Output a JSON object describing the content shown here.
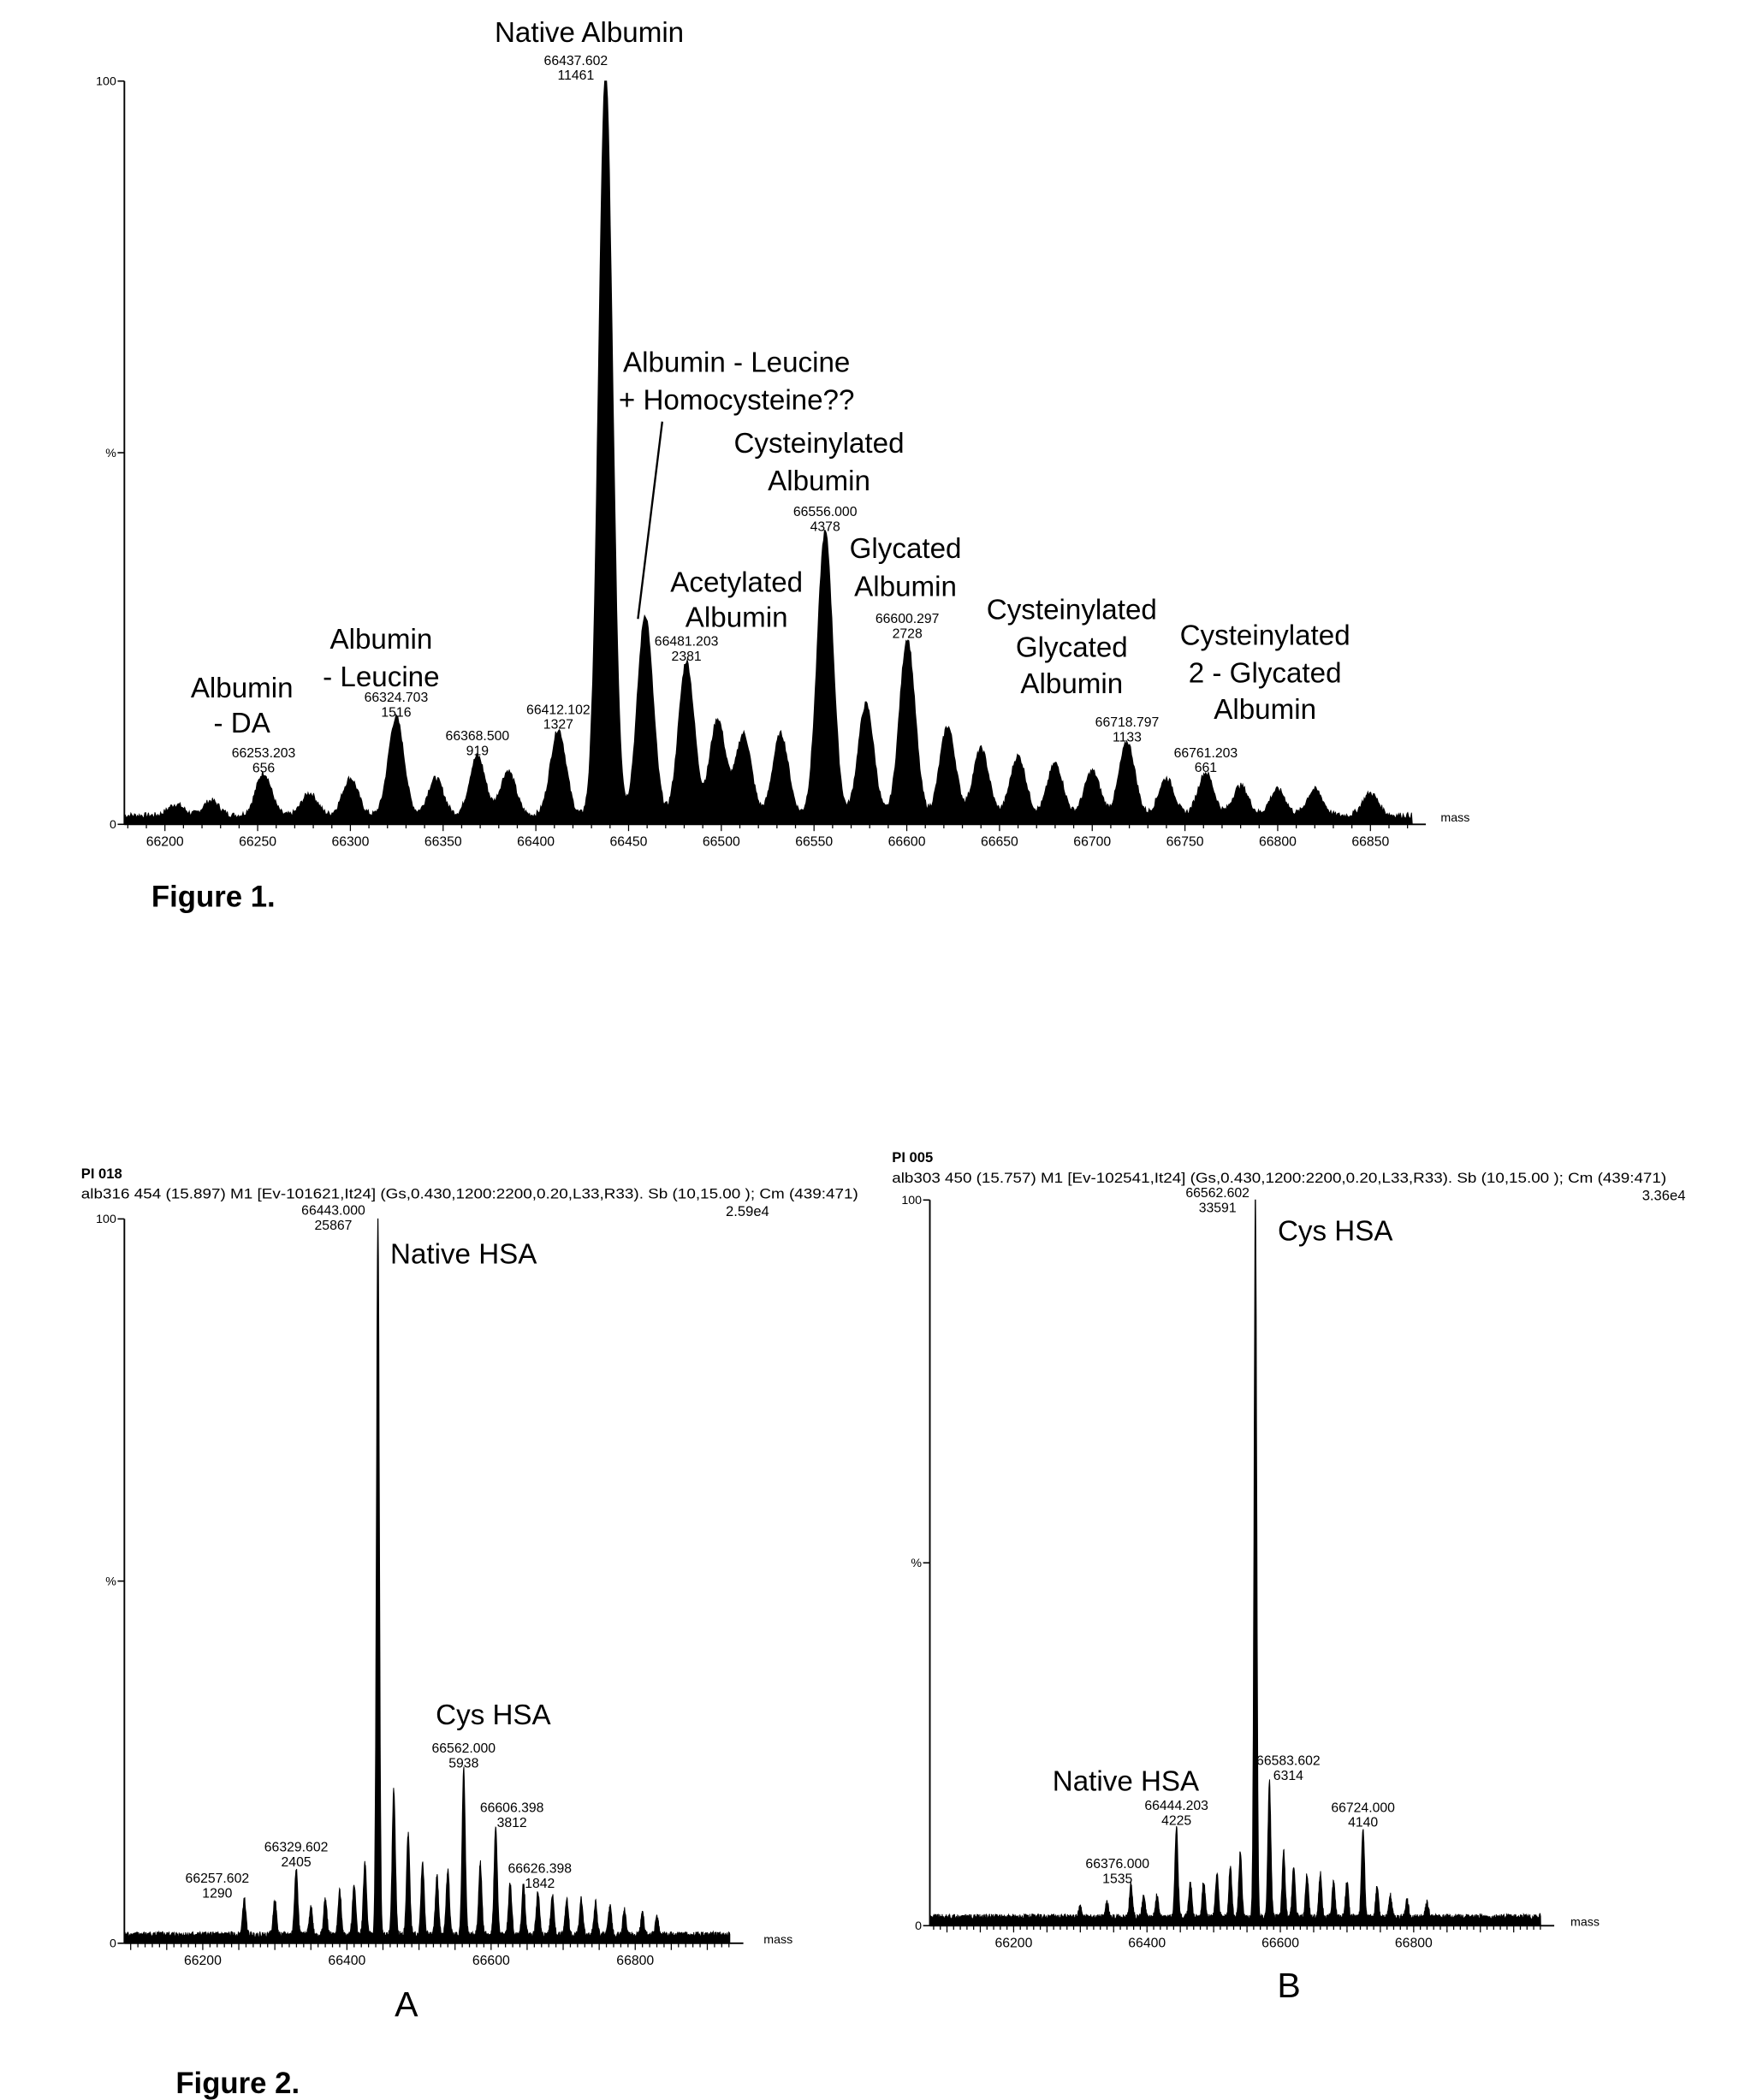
{
  "figure1_caption": "Figure 1.",
  "figure2_caption": "Figure 2.",
  "chart_data": [
    {
      "id": "fig1",
      "type": "area",
      "title": "",
      "xlabel": "mass",
      "ylabel": "%",
      "xlim": [
        66180,
        66875
      ],
      "ylim": [
        0,
        100
      ],
      "y_ticks": [
        "100",
        "%",
        "0"
      ],
      "x_ticks": [
        "66200",
        "66250",
        "66300",
        "66350",
        "66400",
        "66450",
        "66500",
        "66550",
        "66600",
        "66650",
        "66700",
        "66750",
        "66800",
        "66850"
      ],
      "max_intensity": 11461,
      "labeled_peaks": [
        {
          "mass": "66253.203",
          "intensity": "656"
        },
        {
          "mass": "66324.703",
          "intensity": "1516"
        },
        {
          "mass": "66368.500",
          "intensity": "919"
        },
        {
          "mass": "66412.102",
          "intensity": "1327"
        },
        {
          "mass": "66437.602",
          "intensity": "11461"
        },
        {
          "mass": "66481.203",
          "intensity": "2381"
        },
        {
          "mass": "66556.000",
          "intensity": "4378"
        },
        {
          "mass": "66600.297",
          "intensity": "2728"
        },
        {
          "mass": "66718.797",
          "intensity": "1133"
        },
        {
          "mass": "66761.203",
          "intensity": "661"
        }
      ],
      "minor_peaks_pct": [
        [
          66206,
          1.5
        ],
        [
          66225,
          2
        ],
        [
          66278,
          3
        ],
        [
          66300,
          5
        ],
        [
          66346,
          5
        ],
        [
          66385,
          6
        ],
        [
          66459,
          27
        ],
        [
          66498,
          13
        ],
        [
          66512,
          11
        ],
        [
          66532,
          11
        ],
        [
          66578,
          15
        ],
        [
          66622,
          12
        ],
        [
          66640,
          9
        ],
        [
          66660,
          8
        ],
        [
          66680,
          7
        ],
        [
          66700,
          6
        ],
        [
          66740,
          5
        ],
        [
          66780,
          4
        ],
        [
          66800,
          3.5
        ],
        [
          66820,
          3.5
        ],
        [
          66850,
          3
        ]
      ],
      "annotations": [
        [
          "Native Albumin"
        ],
        [
          "Albumin - Leucine",
          "+ Homocysteine??"
        ],
        [
          "Cysteinylated",
          "Albumin"
        ],
        [
          "Acetylated",
          "Albumin"
        ],
        [
          "Glycated",
          "Albumin"
        ],
        [
          "Cysteinylated",
          "Glycated",
          "Albumin"
        ],
        [
          "Cysteinylated",
          "2 - Glycated",
          "Albumin"
        ],
        [
          "Albumin",
          "- DA"
        ],
        [
          "Albumin",
          "- Leucine"
        ]
      ]
    },
    {
      "id": "fig2a",
      "type": "area",
      "panel_label": "A",
      "header_id": "PI 018",
      "header_info": "alb316  454 (15.897) M1 [Ev-101621,It24] (Gs,0.430,1200:2200,0.20,L33,R33). Sb (10,15.00 ); Cm (439:471)",
      "header_scale": "2.59e4",
      "xlabel": "mass",
      "ylabel": "%",
      "xlim": [
        66090,
        66930
      ],
      "ylim": [
        0,
        100
      ],
      "y_ticks": [
        "100",
        "%",
        "0"
      ],
      "x_ticks": [
        "66200",
        "66400",
        "66600",
        "66800"
      ],
      "max_intensity": 25867,
      "labeled_peaks": [
        {
          "mass": "66257.602",
          "intensity": "1290"
        },
        {
          "mass": "66329.602",
          "intensity": "2405"
        },
        {
          "mass": "66443.000",
          "intensity": "25867"
        },
        {
          "mass": "66562.000",
          "intensity": "5938"
        },
        {
          "mass": "66606.398",
          "intensity": "3812"
        },
        {
          "mass": "66626.398",
          "intensity": "1842"
        }
      ],
      "minor_peaks_pct": [
        [
          66300,
          5
        ],
        [
          66350,
          4
        ],
        [
          66370,
          5
        ],
        [
          66390,
          6
        ],
        [
          66410,
          7
        ],
        [
          66425,
          10
        ],
        [
          66465,
          20
        ],
        [
          66485,
          14
        ],
        [
          66505,
          10
        ],
        [
          66525,
          8
        ],
        [
          66540,
          9
        ],
        [
          66585,
          10
        ],
        [
          66645,
          7
        ],
        [
          66665,
          6
        ],
        [
          66685,
          5.5
        ],
        [
          66705,
          5
        ],
        [
          66725,
          5
        ],
        [
          66745,
          4.5
        ],
        [
          66765,
          4
        ],
        [
          66785,
          3.5
        ],
        [
          66810,
          3
        ],
        [
          66830,
          2.5
        ]
      ],
      "annotations": [
        [
          "Native HSA"
        ],
        [
          "Cys HSA"
        ]
      ]
    },
    {
      "id": "fig2b",
      "type": "area",
      "panel_label": "B",
      "header_id": "PI 005",
      "header_info": "alb303  450 (15.757) M1 [Ev-102541,It24] (Gs,0.430,1200:2200,0.20,L33,R33). Sb (10,15.00 ); Cm (439:471)",
      "header_scale": "3.36e4",
      "xlabel": "mass",
      "ylabel": "%",
      "xlim": [
        66075,
        66955
      ],
      "ylim": [
        0,
        100
      ],
      "y_ticks": [
        "100",
        "%",
        "0"
      ],
      "x_ticks": [
        "66200",
        "66400",
        "66600",
        "66800"
      ],
      "max_intensity": 33591,
      "labeled_peaks": [
        {
          "mass": "66376.000",
          "intensity": "1535"
        },
        {
          "mass": "66444.203",
          "intensity": "4225"
        },
        {
          "mass": "66562.602",
          "intensity": "33591"
        },
        {
          "mass": "66583.602",
          "intensity": "6314"
        },
        {
          "mass": "66724.000",
          "intensity": "4140"
        }
      ],
      "minor_peaks_pct": [
        [
          66300,
          1.5
        ],
        [
          66340,
          2
        ],
        [
          66395,
          3
        ],
        [
          66415,
          3
        ],
        [
          66465,
          5
        ],
        [
          66485,
          5
        ],
        [
          66505,
          6
        ],
        [
          66525,
          7
        ],
        [
          66540,
          9
        ],
        [
          66605,
          9
        ],
        [
          66620,
          7
        ],
        [
          66640,
          6
        ],
        [
          66660,
          6
        ],
        [
          66680,
          5
        ],
        [
          66700,
          5
        ],
        [
          66745,
          4
        ],
        [
          66765,
          3
        ],
        [
          66790,
          2.5
        ],
        [
          66820,
          2
        ]
      ],
      "annotations": [
        [
          "Cys HSA"
        ],
        [
          "Native HSA"
        ]
      ]
    }
  ]
}
